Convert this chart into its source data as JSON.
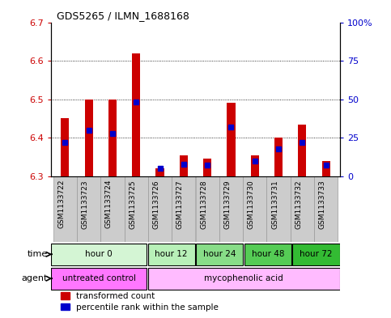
{
  "title": "GDS5265 / ILMN_1688168",
  "samples": [
    "GSM1133722",
    "GSM1133723",
    "GSM1133724",
    "GSM1133725",
    "GSM1133726",
    "GSM1133727",
    "GSM1133728",
    "GSM1133729",
    "GSM1133730",
    "GSM1133731",
    "GSM1133732",
    "GSM1133733"
  ],
  "red_values": [
    6.45,
    6.5,
    6.5,
    6.62,
    6.32,
    6.355,
    6.345,
    6.49,
    6.355,
    6.4,
    6.435,
    6.34
  ],
  "blue_values_pct": [
    22,
    30,
    28,
    48,
    5,
    8,
    7,
    32,
    10,
    18,
    22,
    7
  ],
  "ymin": 6.3,
  "ymax": 6.7,
  "yticks": [
    6.3,
    6.4,
    6.5,
    6.6,
    6.7
  ],
  "right_yticks_vals": [
    0,
    25,
    50,
    75,
    100
  ],
  "right_yticks_labels": [
    "0",
    "25",
    "50",
    "75",
    "100%"
  ],
  "time_groups": [
    {
      "label": "hour 0",
      "start": 0,
      "end": 4,
      "color": "#d4f5d4"
    },
    {
      "label": "hour 12",
      "start": 4,
      "end": 6,
      "color": "#b8f0b8"
    },
    {
      "label": "hour 24",
      "start": 6,
      "end": 8,
      "color": "#88dd88"
    },
    {
      "label": "hour 48",
      "start": 8,
      "end": 10,
      "color": "#55cc55"
    },
    {
      "label": "hour 72",
      "start": 10,
      "end": 12,
      "color": "#33bb33"
    }
  ],
  "agent_groups": [
    {
      "label": "untreated control",
      "start": 0,
      "end": 4,
      "color": "#ff77ff"
    },
    {
      "label": "mycophenolic acid",
      "start": 4,
      "end": 12,
      "color": "#ffbbff"
    }
  ],
  "bar_width": 0.35,
  "red_color": "#cc0000",
  "blue_color": "#0000cc",
  "sample_label_bg": "#cccccc",
  "left_axis_color": "#cc0000",
  "right_axis_color": "#0000cc",
  "legend_red": "transformed count",
  "legend_blue": "percentile rank within the sample"
}
